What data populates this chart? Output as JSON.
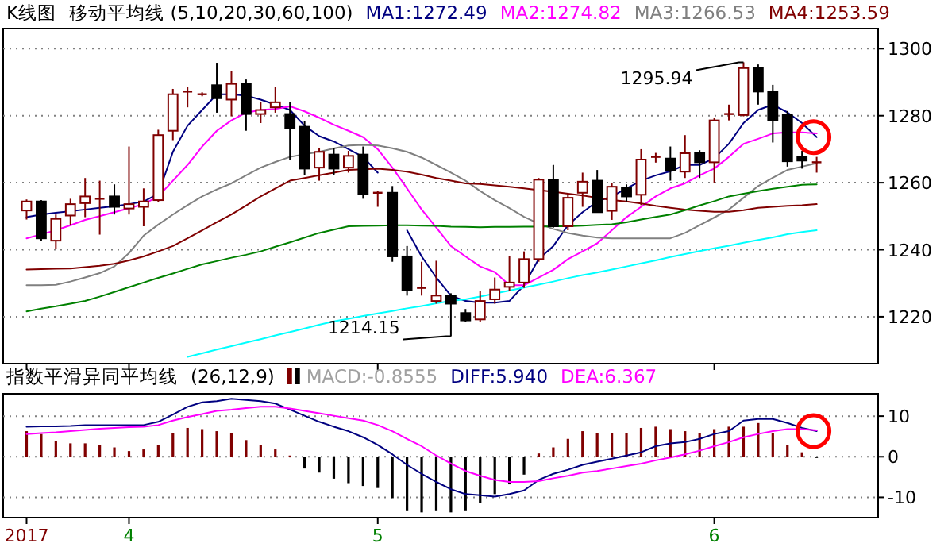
{
  "chart_data": [
    {
      "type": "candlestick",
      "title": "K线图",
      "subtitle": "移动平均线 (5,10,20,30,60,100)",
      "legend": "top",
      "grid": "y",
      "tick_labels": "y",
      "ylim": [
        1206,
        1306
      ],
      "yticks": [
        1220,
        1240,
        1260,
        1280,
        1300
      ],
      "categories": [
        "2017",
        null,
        null,
        null,
        null,
        null,
        null,
        "4",
        null,
        null,
        null,
        null,
        null,
        null,
        null,
        null,
        null,
        null,
        null,
        null,
        null,
        null,
        null,
        null,
        "5",
        null,
        null,
        null,
        null,
        null,
        null,
        null,
        null,
        null,
        null,
        null,
        null,
        null,
        null,
        null,
        null,
        null,
        null,
        null,
        null,
        null,
        null,
        "6",
        null,
        null,
        null,
        null,
        null,
        null,
        null
      ],
      "ohlc": [
        [
          1251.7,
          1255,
          1249,
          1254.4
        ],
        [
          1254.4,
          1254.8,
          1242.7,
          1243.4
        ],
        [
          1242.7,
          1250.5,
          1240.3,
          1249.2
        ],
        [
          1250.2,
          1255.2,
          1247.3,
          1253.6
        ],
        [
          1253.9,
          1261.4,
          1249.7,
          1255.9
        ],
        [
          1255,
          1260.6,
          1244.5,
          1255.2
        ],
        [
          1255.9,
          1259.5,
          1250.5,
          1252.8
        ],
        [
          1252.3,
          1270.8,
          1250.5,
          1253.6
        ],
        [
          1252.8,
          1258.3,
          1247,
          1254.4
        ],
        [
          1254.8,
          1275.8,
          1254.2,
          1274.2
        ],
        [
          1275.5,
          1288,
          1272.7,
          1286.4
        ],
        [
          1286.9,
          1288.7,
          1282.5,
          1287.2
        ],
        [
          1286.4,
          1287,
          1285.8,
          1286.4
        ],
        [
          1289.1,
          1295.8,
          1280.9,
          1285.2
        ],
        [
          1284.8,
          1293.4,
          1279.8,
          1289.5
        ],
        [
          1289.5,
          1290.8,
          1275.5,
          1280.5
        ],
        [
          1280.5,
          1284,
          1277.8,
          1281.7
        ],
        [
          1282.5,
          1288.7,
          1280.9,
          1284
        ],
        [
          1280.5,
          1284,
          1266.9,
          1276.3
        ],
        [
          1276.7,
          1278.3,
          1262.2,
          1264.2
        ],
        [
          1264.5,
          1270.3,
          1260.6,
          1269.2
        ],
        [
          1268.4,
          1270.3,
          1262.2,
          1264.2
        ],
        [
          1264.5,
          1269.5,
          1263,
          1268
        ],
        [
          1268.4,
          1270.8,
          1255.2,
          1256.7
        ],
        [
          1256.7,
          1257.5,
          1252.8,
          1257
        ],
        [
          1257,
          1259,
          1236.4,
          1238
        ],
        [
          1238,
          1241.1,
          1226.3,
          1227.8
        ],
        [
          1228.4,
          1236.4,
          1226.3,
          1228.6
        ],
        [
          1224.7,
          1236.7,
          1223.9,
          1226.3
        ],
        [
          1226.3,
          1227,
          1214.15,
          1223.9
        ],
        [
          1221.1,
          1222.3,
          1218.4,
          1218.9
        ],
        [
          1219.2,
          1227.8,
          1218.4,
          1224.7
        ],
        [
          1225.2,
          1231.7,
          1223.9,
          1228.1
        ],
        [
          1228.9,
          1238,
          1227.8,
          1230.2
        ],
        [
          1230.2,
          1239.5,
          1228.6,
          1237.2
        ],
        [
          1237.2,
          1261.4,
          1236.4,
          1260.9
        ],
        [
          1260.9,
          1265.3,
          1246.6,
          1247
        ],
        [
          1247,
          1256.7,
          1245.8,
          1255.5
        ],
        [
          1257,
          1263,
          1252.8,
          1260.3
        ],
        [
          1260.6,
          1263.8,
          1251.2,
          1251.2
        ],
        [
          1251.6,
          1259.8,
          1248.9,
          1258.8
        ],
        [
          1258.6,
          1259.5,
          1254.4,
          1255.9
        ],
        [
          1256.4,
          1270,
          1253.3,
          1266.9
        ],
        [
          1267.7,
          1268.9,
          1266,
          1267.7
        ],
        [
          1267.2,
          1270.8,
          1260.6,
          1263.8
        ],
        [
          1263.3,
          1274.2,
          1261.4,
          1268.8
        ],
        [
          1268.8,
          1269.7,
          1261.4,
          1266.1
        ],
        [
          1266.1,
          1279.4,
          1259.8,
          1278.6
        ],
        [
          1280.5,
          1283.3,
          1278.6,
          1280.5
        ],
        [
          1280.2,
          1295.94,
          1279.8,
          1294.2
        ],
        [
          1294.2,
          1295.3,
          1283.3,
          1287.2
        ],
        [
          1287.2,
          1289.2,
          1272,
          1278.6
        ],
        [
          1280.2,
          1281.4,
          1264.8,
          1266.4
        ],
        [
          1267.7,
          1269.5,
          1264.2,
          1266.6
        ],
        [
          1266.1,
          1267.7,
          1263,
          1266.1
        ]
      ],
      "colors": [
        "#800000",
        "#000000",
        "#800000",
        "#800000",
        "#800000",
        "#800000",
        "#000000",
        "#800000",
        "#800000",
        "#800000",
        "#800000",
        "#800000",
        "#800000",
        "#000000",
        "#800000",
        "#000000",
        "#800000",
        "#800000",
        "#000000",
        "#000000",
        "#800000",
        "#000000",
        "#800000",
        "#000000",
        "#800000",
        "#000000",
        "#000000",
        "#800000",
        "#800000",
        "#000000",
        "#000000",
        "#800000",
        "#800000",
        "#800000",
        "#800000",
        "#800000",
        "#000000",
        "#800000",
        "#800000",
        "#000000",
        "#800000",
        "#000000",
        "#800000",
        "#800000",
        "#000000",
        "#800000",
        "#000000",
        "#800000",
        "#800000",
        "#800000",
        "#000000",
        "#000000",
        "#000000",
        "#000000",
        "#800000"
      ],
      "series": [
        {
          "type": "line",
          "name": "MA1:1272.49",
          "color": "#000080",
          "values": [
            1249.7,
            1250.5,
            1251,
            1251.5,
            1252,
            1252.5,
            1253,
            1253.6,
            1254.4,
            1256.7,
            1269.2,
            1277,
            1281.7,
            1286.4,
            1286.4,
            1286,
            1284.8,
            1283.3,
            1281.7,
            1277,
            1273.9,
            1272.3,
            1270,
            1267.7,
            1263,
            null,
            1245.8,
            1238,
            1231.7,
            1226.3,
            1224.7,
            1224.2,
            1224.2,
            1224.7,
            1229.4,
            1237.2,
            1241.1,
            1247.3,
            1251.2,
            1254.4,
            1255.9,
            1258.3,
            1260.6,
            1262.2,
            1263.4,
            1265.3,
            1265.3,
            1267.3,
            1271.6,
            1277.8,
            1281.7,
            1283.3,
            1281,
            1277.8,
            1273.6
          ]
        },
        {
          "type": "line",
          "name": "MA2:1274.82",
          "color": "#ff00ff",
          "values": [
            1243.4,
            1244.6,
            1245.8,
            1247.3,
            1248.9,
            1250,
            1251.2,
            1252.4,
            1253.6,
            1255.9,
            1260.6,
            1265.3,
            1270.8,
            1275.5,
            1278.6,
            1280.9,
            1281.7,
            1282,
            1282.8,
            1281.3,
            1279.4,
            1277.3,
            1275.5,
            1273.6,
            1270,
            1264.5,
            1258.3,
            1252,
            1246.6,
            1241.1,
            1238,
            1235,
            1233.3,
            1229.4,
            1229.4,
            1231.7,
            1234,
            1237.2,
            1239.5,
            1241.9,
            1245.8,
            1249.7,
            1252.8,
            1255.9,
            1258.3,
            1259.8,
            1262.2,
            1264.2,
            1267.7,
            1271.6,
            1273.1,
            1274.7,
            1275,
            1275,
            1274.7
          ]
        },
        {
          "type": "line",
          "name": "MA3:1266.53",
          "color": "#808080",
          "values": [
            1229.4,
            1229.4,
            1229.5,
            1230.5,
            1231.7,
            1233,
            1235,
            1239,
            1244.2,
            1247.5,
            1250.5,
            1253.3,
            1255.9,
            1258,
            1259.8,
            1262.2,
            1264.5,
            1266.2,
            1267.7,
            1268.5,
            1269.2,
            1270.2,
            1271.1,
            1271.3,
            1271.1,
            1270.3,
            1269.2,
            1267.5,
            1265.3,
            1263,
            1260.6,
            1257.5,
            1254.8,
            1252.4,
            1249.8,
            1247.8,
            1246.2,
            1245,
            1244.2,
            1243.6,
            1243.4,
            1243.4,
            1243.4,
            1243.4,
            1243.4,
            1245,
            1247.3,
            1249.6,
            1252,
            1255.5,
            1259,
            1261.5,
            1263.8,
            1264.8,
            1265.8
          ]
        },
        {
          "type": "line",
          "name": "MA4:1253.59",
          "color": "#800000",
          "values": [
            1234.1,
            1234.2,
            1234.3,
            1234.4,
            1234.8,
            1235.2,
            1235.8,
            1236.8,
            1238,
            1239.5,
            1241.1,
            1243.4,
            1245.8,
            1248.2,
            1250.5,
            1253.2,
            1255.9,
            1258.3,
            1260.6,
            1261.4,
            1262.2,
            1263,
            1263.8,
            1264,
            1264.2,
            1263.8,
            1263.3,
            1262.4,
            1261.4,
            1260.6,
            1259.8,
            1259.6,
            1259.2,
            1258.8,
            1258.3,
            1257.8,
            1257.3,
            1256.7,
            1256.2,
            1255.5,
            1254.8,
            1254.4,
            1253.8,
            1253.1,
            1252.5,
            1252,
            1251.6,
            1251.3,
            1251.3,
            1251.8,
            1252.5,
            1252.8,
            1253.1,
            1253.3,
            1253.6
          ]
        },
        {
          "type": "line",
          "color": "#008000",
          "values": [
            1221.6,
            1222.4,
            1223.1,
            1223.9,
            1224.7,
            1226,
            1227.4,
            1228.8,
            1230.2,
            1231.6,
            1232.9,
            1234.3,
            1235.6,
            1236.6,
            1237.6,
            1238.5,
            1239.5,
            1240.9,
            1242.2,
            1243.6,
            1245,
            1246,
            1247,
            1247.1,
            1247.2,
            1247.3,
            1247.3,
            1247.2,
            1247.1,
            1246.9,
            1246.8,
            1246.7,
            1246.8,
            1246.8,
            1246.9,
            1246.9,
            1247,
            1247,
            1247.2,
            1247.4,
            1247.6,
            1248.2,
            1249,
            1249.8,
            1250.5,
            1251.8,
            1253.2,
            1254.5,
            1255.9,
            1256.7,
            1257.5,
            1258.2,
            1258.8,
            1259.4,
            1259.5
          ]
        },
        {
          "type": "line",
          "color": "#00ffff",
          "values": [
            null,
            null,
            null,
            null,
            null,
            null,
            null,
            null,
            null,
            null,
            null,
            1208,
            1209.1,
            1210.2,
            1211.2,
            1212.3,
            1213.3,
            1214.4,
            1215.4,
            1216.5,
            1217.6,
            1218.6,
            1219.4,
            1220.2,
            1221,
            1221.7,
            1222.5,
            1223.2,
            1224,
            1224.7,
            1225.2,
            1226,
            1226.9,
            1227.8,
            1228.7,
            1229.6,
            1230.5,
            1231.5,
            1232.4,
            1233.2,
            1234.1,
            1235,
            1235.9,
            1236.8,
            1237.8,
            1238.7,
            1239.6,
            1240.4,
            1241.2,
            1242.1,
            1242.9,
            1243.7,
            1244.6,
            1245.3,
            1245.8
          ]
        }
      ],
      "annotations": [
        "1295.94",
        "1214.15"
      ]
    },
    {
      "type": "bar",
      "title": "指数平滑异同平均线",
      "subtitle": "(26,12,9)",
      "legend": "top",
      "grid": "y",
      "ylim": [
        -15,
        15.5
      ],
      "yticks": [
        -10,
        0,
        10
      ],
      "categories": [
        "2017",
        null,
        null,
        null,
        null,
        null,
        null,
        "4",
        null,
        null,
        null,
        null,
        null,
        null,
        null,
        null,
        null,
        null,
        null,
        null,
        null,
        null,
        null,
        null,
        "5",
        null,
        null,
        null,
        null,
        null,
        null,
        null,
        null,
        null,
        null,
        null,
        null,
        null,
        null,
        null,
        null,
        null,
        null,
        null,
        null,
        null,
        null,
        "6",
        null,
        null,
        null,
        null,
        null,
        null,
        null
      ],
      "series": [
        {
          "type": "bar",
          "name": "MACD:-0.8555",
          "color": "#a0a0a0",
          "values": [
            6.3,
            5.6,
            3.8,
            3.3,
            3.3,
            2.9,
            2.3,
            1.4,
            1.8,
            2.9,
            5.9,
            7.1,
            6.8,
            6.3,
            5.9,
            4.1,
            2.9,
            1.8,
            0.3,
            -2.9,
            -3.9,
            -5.4,
            -6.5,
            -7.2,
            -7.7,
            -10.2,
            -13.2,
            -13.7,
            -13.2,
            -13.7,
            -13.2,
            -11.3,
            -9.2,
            -6.8,
            -4.4,
            0.8,
            2.3,
            4.4,
            6.3,
            5.9,
            5.9,
            5.9,
            7.1,
            7.4,
            6.8,
            6.3,
            5.9,
            6.8,
            7.4,
            7.4,
            8.3,
            5.9,
            2.9,
            1.1,
            -0.3
          ],
          "colors": [
            "#800000",
            "#800000",
            "#800000",
            "#800000",
            "#800000",
            "#800000",
            "#800000",
            "#800000",
            "#800000",
            "#800000",
            "#800000",
            "#800000",
            "#800000",
            "#800000",
            "#800000",
            "#800000",
            "#800000",
            "#800000",
            "#800000",
            "#000000",
            "#000000",
            "#000000",
            "#000000",
            "#000000",
            "#000000",
            "#000000",
            "#000000",
            "#000000",
            "#000000",
            "#000000",
            "#000000",
            "#000000",
            "#000000",
            "#000000",
            "#000000",
            "#800000",
            "#800000",
            "#800000",
            "#800000",
            "#800000",
            "#800000",
            "#800000",
            "#800000",
            "#800000",
            "#800000",
            "#800000",
            "#800000",
            "#800000",
            "#800000",
            "#800000",
            "#800000",
            "#800000",
            "#800000",
            "#800000",
            "#000000"
          ]
        },
        {
          "type": "line",
          "name": "DIFF:5.940",
          "color": "#000080",
          "values": [
            7.4,
            7.5,
            7.5,
            7.6,
            7.8,
            7.8,
            7.8,
            7.8,
            7.8,
            8.6,
            10.4,
            12.3,
            13.4,
            13.7,
            14.3,
            14,
            13.7,
            13.1,
            11.6,
            10.1,
            8.6,
            7.4,
            6.3,
            4.8,
            2.9,
            0.6,
            -2,
            -4.2,
            -6.2,
            -8,
            -9.2,
            -9.5,
            -9.8,
            -9.2,
            -8.3,
            -5.7,
            -4.2,
            -3.2,
            -2,
            -1.2,
            -0.5,
            0.3,
            1.1,
            2.6,
            3.3,
            3.6,
            4.4,
            5.6,
            6.3,
            8.9,
            9.3,
            9.3,
            8.3,
            7.1,
            6.3
          ]
        },
        {
          "type": "line",
          "name": "DEA:6.367",
          "color": "#ff00ff",
          "values": [
            5.6,
            5.8,
            6,
            6.3,
            6.6,
            6.9,
            7.1,
            7.3,
            7.4,
            7.8,
            8.9,
            9.8,
            10.5,
            11.3,
            11.6,
            12,
            12.3,
            12.3,
            11.9,
            11.3,
            10.7,
            10.1,
            9.5,
            8.9,
            7.8,
            6.3,
            4.4,
            2.6,
            0.3,
            -1.7,
            -3.5,
            -4.7,
            -5.7,
            -6.2,
            -6.2,
            -6,
            -5.3,
            -4.7,
            -3.9,
            -3.5,
            -2.9,
            -2.3,
            -1.7,
            -0.9,
            -0.2,
            0.6,
            1.5,
            2.6,
            3.6,
            4.8,
            5.6,
            6.3,
            6.8,
            6.8,
            6.5
          ]
        }
      ]
    }
  ]
}
